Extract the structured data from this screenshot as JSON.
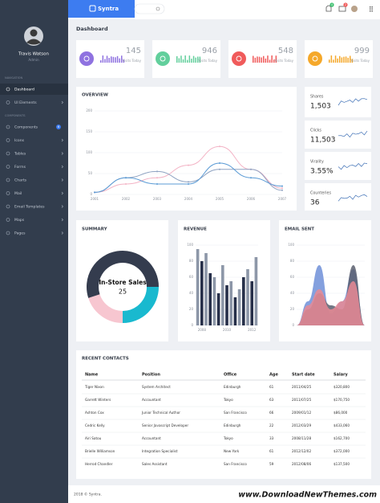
{
  "brand": "Syntra",
  "user": {
    "name": "Travis Watson",
    "role": "Admin"
  },
  "topbar": {
    "badges": [
      "4",
      "2"
    ]
  },
  "sidebar": {
    "sections": [
      {
        "title": "NAVIGATION",
        "items": [
          {
            "label": "Dashboard"
          },
          {
            "label": "UI Elements"
          }
        ]
      },
      {
        "title": "COMPONENTS",
        "items": [
          {
            "label": "Components",
            "badge": "6"
          },
          {
            "label": "Icons"
          },
          {
            "label": "Tables"
          },
          {
            "label": "Forms"
          },
          {
            "label": "Charts"
          },
          {
            "label": "Mail"
          },
          {
            "label": "Email Templates"
          },
          {
            "label": "Maps"
          },
          {
            "label": "Pages"
          }
        ]
      }
    ]
  },
  "page_title": "Dashboard",
  "stats": [
    {
      "value": 145,
      "label": "Visits Today",
      "color": "#8f72e0"
    },
    {
      "value": 946,
      "label": "Visits Today",
      "color": "#62cf9c"
    },
    {
      "value": 548,
      "label": "Visits Today",
      "color": "#f05b5b"
    },
    {
      "value": 999,
      "label": "Visits Today",
      "color": "#f5a82a"
    }
  ],
  "overview": {
    "title": "OVERVIEW",
    "x": [
      "2001",
      "2002",
      "2003",
      "2004",
      "2005",
      "2006",
      "2007"
    ],
    "ylim": [
      0,
      200
    ],
    "yticks": [
      0,
      50,
      100,
      150,
      200
    ],
    "grid": true,
    "series": [
      {
        "color": "#f3b3c5",
        "values": [
          5,
          25,
          40,
          70,
          115,
          60,
          15
        ]
      },
      {
        "color": "#8fa3c2",
        "values": [
          5,
          40,
          55,
          30,
          60,
          60,
          10
        ]
      },
      {
        "color": "#5b9bd5",
        "values": [
          5,
          40,
          25,
          25,
          75,
          40,
          20
        ]
      }
    ]
  },
  "metrics": [
    {
      "label": "Shares",
      "value": "1,503"
    },
    {
      "label": "Clicks",
      "value": "11,503"
    },
    {
      "label": "Virality",
      "value": "3.55%"
    },
    {
      "label": "Counteries",
      "value": "36"
    }
  ],
  "summary": {
    "title": "SUMMARY",
    "label": "In-Store Sales",
    "value": 25,
    "segments": [
      {
        "color": "#19b9cf",
        "value": 25
      },
      {
        "color": "#f7c6d0",
        "value": 20
      },
      {
        "color": "#343c4e",
        "value": 55
      }
    ]
  },
  "revenue": {
    "title": "REVENUE",
    "categories": [
      null,
      "2008",
      null,
      null,
      null,
      null,
      null,
      "2010",
      null,
      null,
      null,
      null,
      null,
      "2012",
      null
    ],
    "values": [
      95,
      80,
      90,
      65,
      60,
      40,
      75,
      50,
      55,
      35,
      45,
      60,
      70,
      55,
      85
    ],
    "colors": [
      "#8d97a8",
      "#27304a"
    ],
    "ylim": [
      0,
      100
    ],
    "yticks": [
      0,
      20,
      40,
      60,
      80,
      100
    ],
    "grid": true
  },
  "email": {
    "title": "EMAIL SENT",
    "ylim": [
      0,
      100
    ],
    "yticks": [
      0,
      20,
      40,
      60,
      80,
      100
    ],
    "grid": true,
    "series": [
      {
        "color": "#6f8fd8",
        "values": [
          0,
          30,
          75,
          15,
          30,
          70,
          0
        ]
      },
      {
        "color": "#5a5f6e",
        "values": [
          0,
          20,
          40,
          25,
          20,
          75,
          0
        ]
      },
      {
        "color": "#e98a94",
        "values": [
          0,
          25,
          45,
          20,
          30,
          55,
          0
        ]
      }
    ]
  },
  "contacts": {
    "title": "RECENT CONTACTS",
    "columns": [
      "Name",
      "Position",
      "Office",
      "Age",
      "Start date",
      "Salary"
    ],
    "rows": [
      [
        "Tiger Nixon",
        "System Architect",
        "Edinburgh",
        "61",
        "2011/04/25",
        "$320,800"
      ],
      [
        "Garrett Winters",
        "Accountant",
        "Tokyo",
        "63",
        "2011/07/25",
        "$170,750"
      ],
      [
        "Ashton Cox",
        "Junior Technical Author",
        "San Francisco",
        "66",
        "2009/01/12",
        "$86,000"
      ],
      [
        "Cedric Kelly",
        "Senior Javascript Developer",
        "Edinburgh",
        "22",
        "2012/03/29",
        "$433,060"
      ],
      [
        "Airi Satou",
        "Accountant",
        "Tokyo",
        "33",
        "2008/11/28",
        "$162,700"
      ],
      [
        "Brielle Williamson",
        "Integration Specialist",
        "New York",
        "61",
        "2012/12/02",
        "$372,000"
      ],
      [
        "Herrod Chandler",
        "Sales Assistant",
        "San Francisco",
        "59",
        "2012/08/06",
        "$137,500"
      ]
    ]
  },
  "footer": "2018 © Syntra.",
  "watermark": "www.DownloadNewThemes.com"
}
